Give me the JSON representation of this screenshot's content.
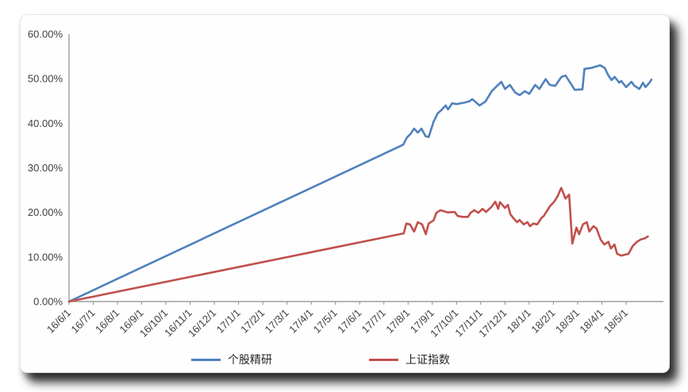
{
  "chart_data": {
    "type": "line",
    "title": "",
    "xlabel": "",
    "ylabel": "",
    "grid": false,
    "legend_position": "bottom",
    "ylim": [
      0,
      60
    ],
    "y_tick_labels": [
      "0.00%",
      "10.00%",
      "20.00%",
      "30.00%",
      "40.00%",
      "50.00%",
      "60.00%"
    ],
    "x_tick_labels": [
      "16/6/1",
      "16/7/1",
      "16/8/1",
      "16/9/1",
      "16/10/1",
      "16/11/1",
      "16/12/1",
      "17/1/1",
      "17/2/1",
      "17/3/1",
      "17/4/1",
      "17/5/1",
      "17/6/1",
      "17/7/1",
      "17/8/1",
      "17/9/1",
      "17/10/1",
      "17/11/1",
      "17/12/1",
      "18/1/1",
      "18/2/1",
      "18/3/1",
      "18/4/1",
      "18/5/1"
    ],
    "axis_color": "#8c8c8c",
    "label_color": "#3f3f3f",
    "points_format": "[months_after_16/6/1, percent]",
    "series": [
      {
        "name": "个股精研",
        "color": "#4F81BD",
        "points": [
          [
            0,
            0
          ],
          [
            13.8,
            35.2
          ],
          [
            13.95,
            36.8
          ],
          [
            14.1,
            37.6
          ],
          [
            14.25,
            38.8
          ],
          [
            14.4,
            37.9
          ],
          [
            14.55,
            38.8
          ],
          [
            14.72,
            37.1
          ],
          [
            14.85,
            36.9
          ],
          [
            15.05,
            40.3
          ],
          [
            15.22,
            42.2
          ],
          [
            15.4,
            43.1
          ],
          [
            15.55,
            44.0
          ],
          [
            15.65,
            43.1
          ],
          [
            15.82,
            44.5
          ],
          [
            16.0,
            44.3
          ],
          [
            16.3,
            44.6
          ],
          [
            16.52,
            44.9
          ],
          [
            16.65,
            45.4
          ],
          [
            16.95,
            44.0
          ],
          [
            17.2,
            44.9
          ],
          [
            17.45,
            47.2
          ],
          [
            17.62,
            48.1
          ],
          [
            17.85,
            49.3
          ],
          [
            18.0,
            47.7
          ],
          [
            18.2,
            48.6
          ],
          [
            18.42,
            46.9
          ],
          [
            18.6,
            46.3
          ],
          [
            18.82,
            47.2
          ],
          [
            19.0,
            46.6
          ],
          [
            19.25,
            48.6
          ],
          [
            19.42,
            47.7
          ],
          [
            19.68,
            49.9
          ],
          [
            19.85,
            48.6
          ],
          [
            20.08,
            48.4
          ],
          [
            20.33,
            50.4
          ],
          [
            20.5,
            50.7
          ],
          [
            20.67,
            49.3
          ],
          [
            20.88,
            47.5
          ],
          [
            21.2,
            47.6
          ],
          [
            21.28,
            52.2
          ],
          [
            21.55,
            52.4
          ],
          [
            21.93,
            53.0
          ],
          [
            22.12,
            52.4
          ],
          [
            22.25,
            50.9
          ],
          [
            22.4,
            49.7
          ],
          [
            22.53,
            50.4
          ],
          [
            22.72,
            49.1
          ],
          [
            22.8,
            49.5
          ],
          [
            23.0,
            48.1
          ],
          [
            23.22,
            49.3
          ],
          [
            23.35,
            48.4
          ],
          [
            23.55,
            47.7
          ],
          [
            23.7,
            49.1
          ],
          [
            23.8,
            48.1
          ],
          [
            23.95,
            49.0
          ],
          [
            24.05,
            49.8
          ]
        ]
      },
      {
        "name": "上证指数",
        "color": "#C0504D",
        "points": [
          [
            0,
            0
          ],
          [
            13.82,
            15.3
          ],
          [
            13.93,
            17.5
          ],
          [
            14.08,
            17.3
          ],
          [
            14.25,
            15.7
          ],
          [
            14.4,
            17.8
          ],
          [
            14.58,
            17.3
          ],
          [
            14.73,
            15.1
          ],
          [
            14.85,
            17.5
          ],
          [
            15.05,
            18.2
          ],
          [
            15.17,
            19.9
          ],
          [
            15.33,
            20.5
          ],
          [
            15.65,
            20.0
          ],
          [
            15.92,
            20.1
          ],
          [
            16.05,
            19.2
          ],
          [
            16.25,
            19.0
          ],
          [
            16.47,
            19.0
          ],
          [
            16.58,
            19.9
          ],
          [
            16.73,
            20.5
          ],
          [
            16.9,
            19.9
          ],
          [
            17.07,
            20.8
          ],
          [
            17.22,
            20.1
          ],
          [
            17.45,
            21.3
          ],
          [
            17.6,
            22.4
          ],
          [
            17.72,
            20.8
          ],
          [
            17.79,
            22.3
          ],
          [
            18.0,
            21.0
          ],
          [
            18.12,
            21.7
          ],
          [
            18.22,
            19.6
          ],
          [
            18.35,
            18.7
          ],
          [
            18.5,
            17.8
          ],
          [
            18.6,
            18.3
          ],
          [
            18.77,
            17.3
          ],
          [
            18.93,
            17.8
          ],
          [
            19.03,
            16.9
          ],
          [
            19.17,
            17.5
          ],
          [
            19.33,
            17.3
          ],
          [
            19.5,
            18.7
          ],
          [
            19.6,
            19.2
          ],
          [
            19.75,
            20.5
          ],
          [
            19.86,
            21.4
          ],
          [
            20.02,
            22.3
          ],
          [
            20.18,
            23.7
          ],
          [
            20.32,
            25.5
          ],
          [
            20.5,
            23.1
          ],
          [
            20.65,
            24.0
          ],
          [
            20.78,
            13.0
          ],
          [
            20.95,
            16.6
          ],
          [
            21.06,
            15.1
          ],
          [
            21.22,
            17.3
          ],
          [
            21.38,
            17.8
          ],
          [
            21.48,
            15.7
          ],
          [
            21.65,
            16.9
          ],
          [
            21.78,
            16.4
          ],
          [
            21.95,
            13.9
          ],
          [
            22.1,
            12.8
          ],
          [
            22.27,
            13.4
          ],
          [
            22.37,
            11.9
          ],
          [
            22.52,
            12.8
          ],
          [
            22.63,
            10.7
          ],
          [
            22.8,
            10.3
          ],
          [
            23.1,
            10.7
          ],
          [
            23.28,
            12.5
          ],
          [
            23.45,
            13.4
          ],
          [
            23.6,
            13.9
          ],
          [
            23.78,
            14.2
          ],
          [
            23.9,
            14.6
          ]
        ]
      }
    ]
  }
}
